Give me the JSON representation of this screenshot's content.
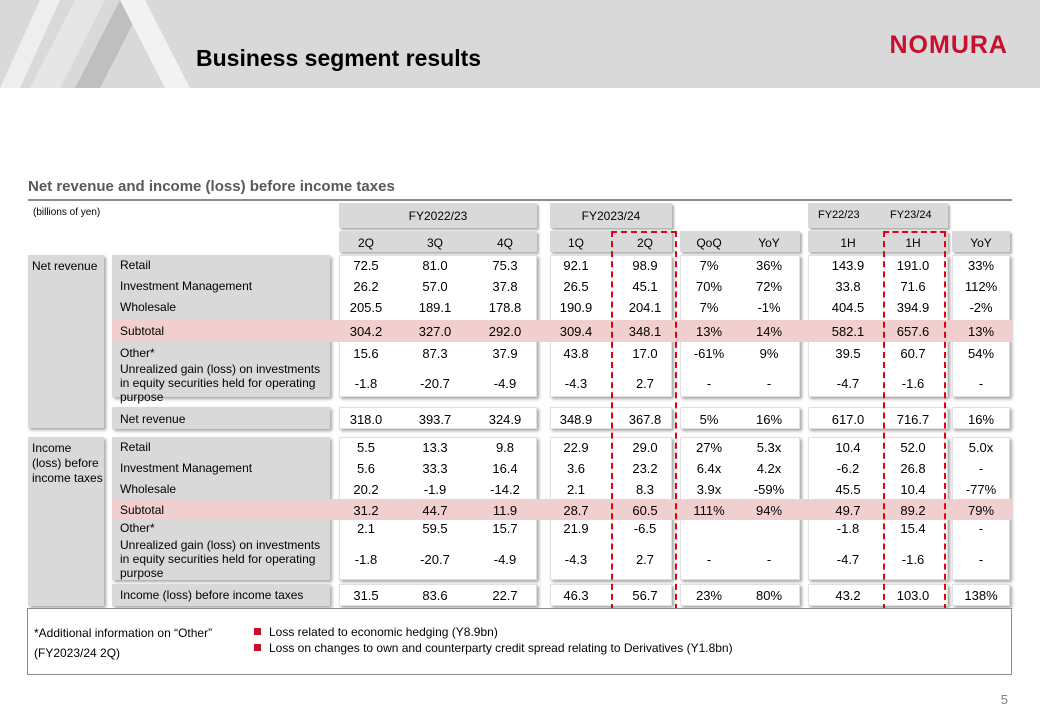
{
  "header": {
    "title": "Business segment results",
    "logo": "NOMURA",
    "brand_color": "#c8102e"
  },
  "subtitle": "Net revenue and income (loss) before income taxes",
  "unit": "(billions of yen)",
  "group_headers": {
    "fy2022": "FY2022/23",
    "fy2023": "FY2023/24",
    "fy22h": "FY22/23",
    "fy23h": "FY23/24"
  },
  "columns": [
    "2Q",
    "3Q",
    "4Q",
    "1Q",
    "2Q",
    "QoQ",
    "YoY",
    "1H",
    "1H",
    "YoY"
  ],
  "sections": {
    "net_revenue": "Net revenue",
    "income": "Income (loss) before income taxes"
  },
  "net_revenue_rows": [
    {
      "label": "Retail",
      "values": [
        "72.5",
        "81.0",
        "75.3",
        "92.1",
        "98.9",
        "7%",
        "36%",
        "143.9",
        "191.0",
        "33%"
      ]
    },
    {
      "label": "Investment Management",
      "values": [
        "26.2",
        "57.0",
        "37.8",
        "26.5",
        "45.1",
        "70%",
        "72%",
        "33.8",
        "71.6",
        "112%"
      ]
    },
    {
      "label": "Wholesale",
      "values": [
        "205.5",
        "189.1",
        "178.8",
        "190.9",
        "204.1",
        "7%",
        "-1%",
        "404.5",
        "394.9",
        "-2%"
      ]
    },
    {
      "label": "Subtotal",
      "values": [
        "304.2",
        "327.0",
        "292.0",
        "309.4",
        "348.1",
        "13%",
        "14%",
        "582.1",
        "657.6",
        "13%"
      ]
    },
    {
      "label": "Other*",
      "values": [
        "15.6",
        "87.3",
        "37.9",
        "43.8",
        "17.0",
        "-61%",
        "9%",
        "39.5",
        "60.7",
        "54%"
      ]
    },
    {
      "label": "Unrealized gain (loss) on investments in equity securities held for operating purpose",
      "values": [
        "-1.8",
        "-20.7",
        "-4.9",
        "-4.3",
        "2.7",
        "-",
        "-",
        "-4.7",
        "-1.6",
        "-"
      ]
    },
    {
      "label": "Net revenue",
      "values": [
        "318.0",
        "393.7",
        "324.9",
        "348.9",
        "367.8",
        "5%",
        "16%",
        "617.0",
        "716.7",
        "16%"
      ]
    }
  ],
  "income_rows": [
    {
      "label": "Retail",
      "values": [
        "5.5",
        "13.3",
        "9.8",
        "22.9",
        "29.0",
        "27%",
        "5.3x",
        "10.4",
        "52.0",
        "5.0x"
      ]
    },
    {
      "label": "Investment Management",
      "values": [
        "5.6",
        "33.3",
        "16.4",
        "3.6",
        "23.2",
        "6.4x",
        "4.2x",
        "-6.2",
        "26.8",
        "-"
      ]
    },
    {
      "label": "Wholesale",
      "values": [
        "20.2",
        "-1.9",
        "-14.2",
        "2.1",
        "8.3",
        "3.9x",
        "-59%",
        "45.5",
        "10.4",
        "-77%"
      ]
    },
    {
      "label": "Subtotal",
      "values": [
        "31.2",
        "44.7",
        "11.9",
        "28.7",
        "60.5",
        "111%",
        "94%",
        "49.7",
        "89.2",
        "79%"
      ]
    },
    {
      "label": "Other*",
      "values": [
        "2.1",
        "59.5",
        "15.7",
        "21.9",
        "-6.5",
        "",
        "",
        "-1.8",
        "15.4",
        "-"
      ]
    },
    {
      "label": "Unrealized gain (loss) on investments in equity securities held for operating purpose",
      "values": [
        "-1.8",
        "-20.7",
        "-4.9",
        "-4.3",
        "2.7",
        "-",
        "-",
        "-4.7",
        "-1.6",
        "-"
      ]
    },
    {
      "label": "Income (loss) before income taxes",
      "values": [
        "31.5",
        "83.6",
        "22.7",
        "46.3",
        "56.7",
        "23%",
        "80%",
        "43.2",
        "103.0",
        "138%"
      ]
    }
  ],
  "note": {
    "title": "*Additional information on “Other”",
    "period": "(FY2023/24 2Q)",
    "items": [
      "Loss related to economic hedging (Y8.9bn)",
      "Loss on changes to own and counterparty credit spread relating to Derivatives (Y1.8bn)"
    ]
  },
  "page_number": "5"
}
